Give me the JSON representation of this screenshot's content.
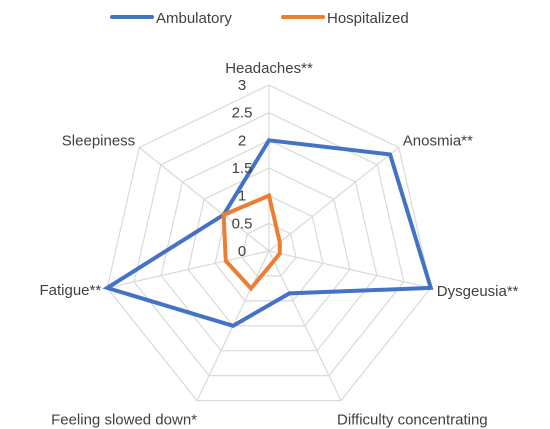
{
  "chart_data": {
    "type": "radar",
    "categories": [
      "Headaches**",
      "Anosmia**",
      "Dysgeusia**",
      "Difficulty concentrating",
      "Feeling slowed down*",
      "Fatigue**",
      "Sleepiness"
    ],
    "series": [
      {
        "name": "Ambulatory",
        "color": "#4472c4",
        "values": [
          2.0,
          2.8,
          3.0,
          0.85,
          1.5,
          3.0,
          1.05
        ]
      },
      {
        "name": "Hospitalized",
        "color": "#ed7d31",
        "values": [
          1.0,
          0.25,
          0.2,
          0.2,
          0.75,
          0.8,
          1.05
        ]
      }
    ],
    "rlim": [
      0,
      3
    ],
    "ticks": [
      "0",
      "0.5",
      "1",
      "1.5",
      "2",
      "2.5",
      "3"
    ],
    "tick_values": [
      0,
      0.5,
      1,
      1.5,
      2,
      2.5,
      3
    ],
    "legend_position": "top",
    "grid": true
  }
}
